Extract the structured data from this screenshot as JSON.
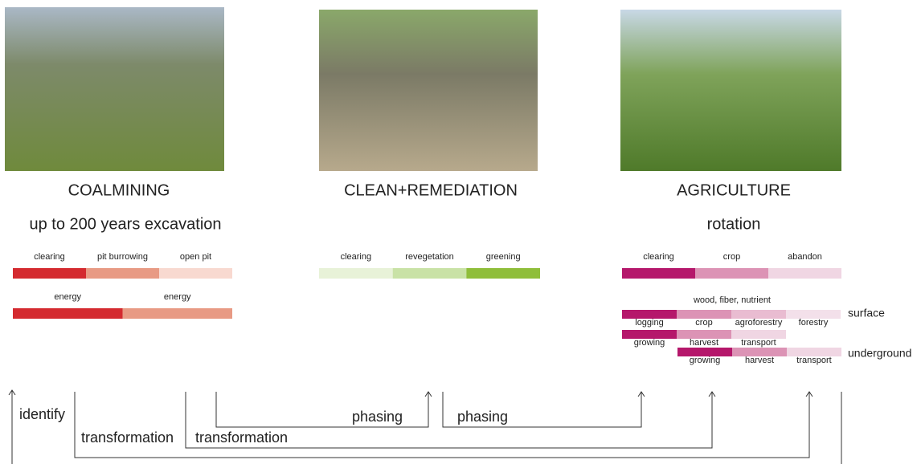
{
  "columns": [
    {
      "title": "COALMINING",
      "subtitle": "up to 200 years excavation",
      "rows": [
        {
          "segments": [
            {
              "label": "clearing",
              "color": "#d42a2f"
            },
            {
              "label": "pit burrowing",
              "color": "#e89a84"
            },
            {
              "label": "open pit",
              "color": "#f8d9d0"
            }
          ]
        },
        {
          "segments": [
            {
              "label": "energy",
              "color": "#d42a2f"
            },
            {
              "label": "energy",
              "color": "#e89a84"
            }
          ]
        }
      ]
    },
    {
      "title": "CLEAN+REMEDIATION",
      "rows": [
        {
          "segments": [
            {
              "label": "clearing",
              "color": "#e8f2d8"
            },
            {
              "label": "revegetation",
              "color": "#c9e2a6"
            },
            {
              "label": "greening",
              "color": "#8fbe3a"
            }
          ]
        }
      ]
    },
    {
      "title": "AGRICULTURE",
      "subtitle": "rotation",
      "rows": [
        {
          "segments": [
            {
              "label": "clearing",
              "color": "#b5176b"
            },
            {
              "label": "crop",
              "color": "#dc93b5"
            },
            {
              "label": "abandon",
              "color": "#f0d6e3"
            }
          ]
        }
      ],
      "cycle_label": "wood, fiber, nutrient",
      "layers": [
        {
          "name": "surface",
          "rows": [
            {
              "segments": [
                {
                  "label": "logging",
                  "color": "#b5176b"
                },
                {
                  "label": "crop",
                  "color": "#dc93b5"
                },
                {
                  "label": "agroforestry",
                  "color": "#e9bcd1"
                },
                {
                  "label": "forestry",
                  "color": "#f3e0ea"
                }
              ]
            },
            {
              "segments": [
                {
                  "label": "growing",
                  "color": "#b5176b"
                },
                {
                  "label": "harvest",
                  "color": "#dc93b5"
                },
                {
                  "label": "transport",
                  "color": "#f0d6e3"
                }
              ]
            }
          ]
        },
        {
          "name": "underground",
          "rows": [
            {
              "segments": [
                {
                  "label": "growing",
                  "color": "#b5176b"
                },
                {
                  "label": "harvest",
                  "color": "#dc93b5"
                },
                {
                  "label": "transport",
                  "color": "#f0d6e3"
                }
              ]
            }
          ]
        }
      ]
    }
  ],
  "flow": {
    "labels": [
      "identify",
      "transformation",
      "transformation",
      "phasing",
      "phasing"
    ]
  }
}
